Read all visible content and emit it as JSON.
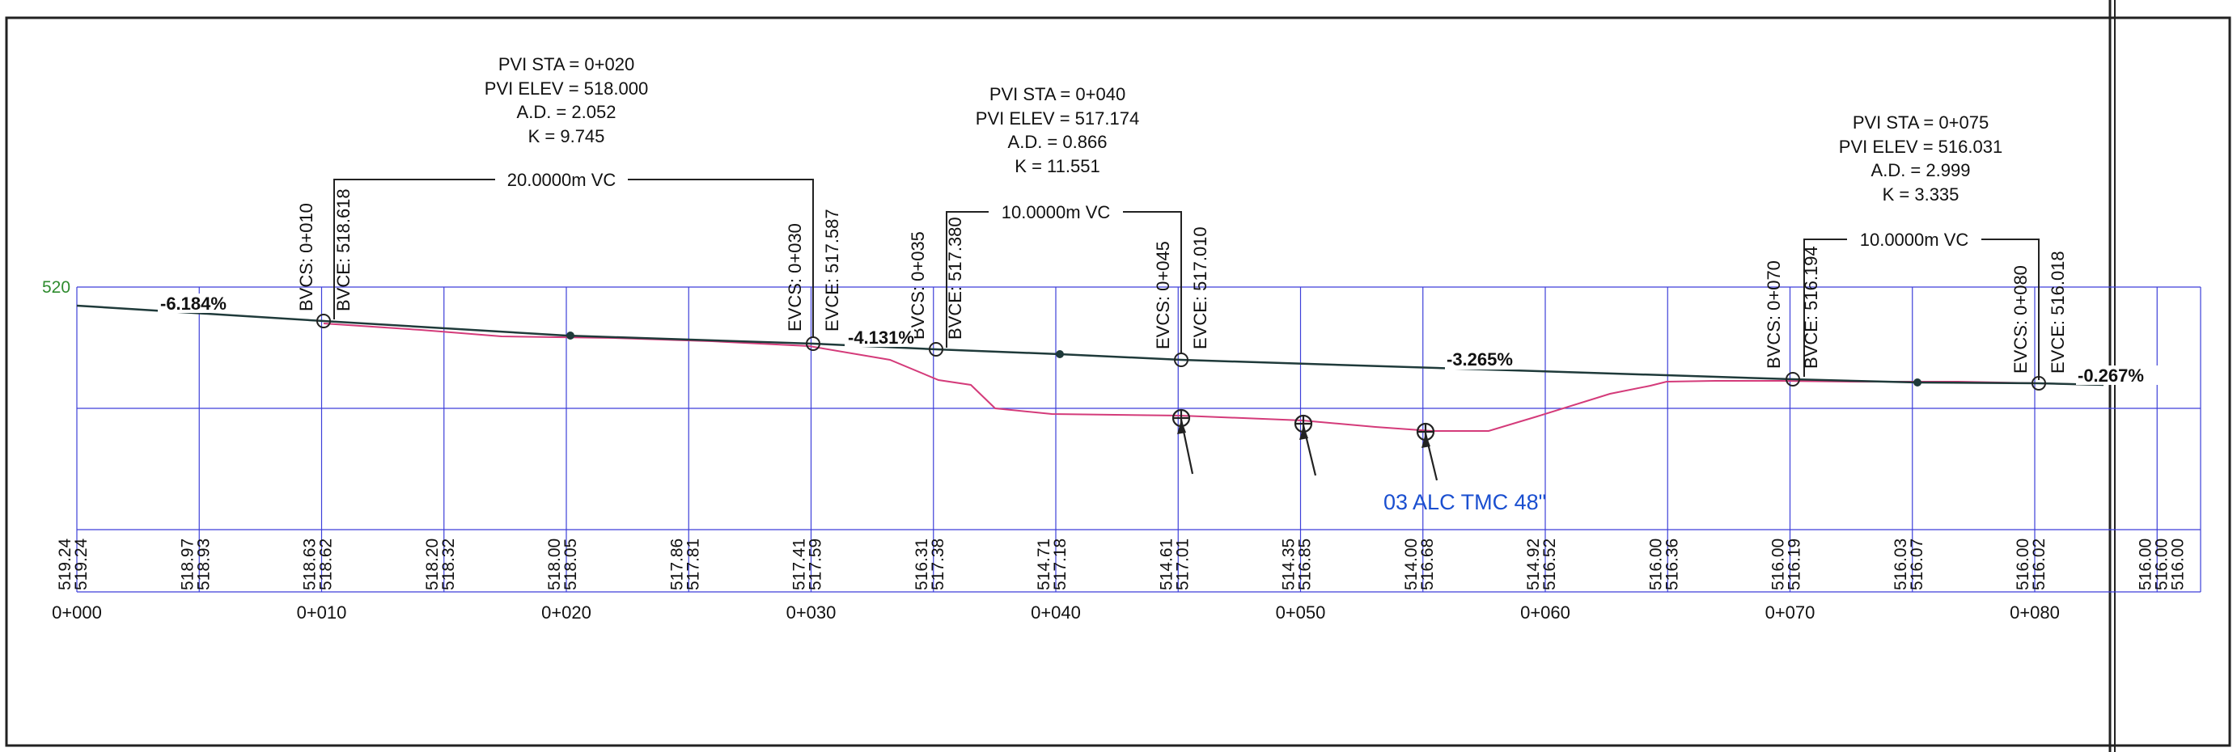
{
  "profile": {
    "elev_label": "520",
    "stations": [
      "0+000",
      "0+010",
      "0+020",
      "0+030",
      "0+040",
      "0+050",
      "0+060",
      "0+070",
      "0+080"
    ],
    "pvis": [
      {
        "sta": "PVI STA = 0+020",
        "elev": "PVI ELEV = 518.000",
        "ad": "A.D. = 2.052",
        "k": "K = 9.745",
        "vc": "20.0000m VC"
      },
      {
        "sta": "PVI STA = 0+040",
        "elev": "PVI ELEV = 517.174",
        "ad": "A.D. = 0.866",
        "k": "K = 11.551",
        "vc": "10.0000m VC"
      },
      {
        "sta": "PVI STA = 0+075",
        "elev": "PVI ELEV = 516.031",
        "ad": "A.D. = 2.999",
        "k": "K = 3.335",
        "vc": "10.0000m VC"
      }
    ],
    "curve_points": [
      {
        "sta_label": "BVCS: 0+010",
        "elev_label": "BVCE: 518.618"
      },
      {
        "sta_label": "EVCS: 0+030",
        "elev_label": "EVCE: 517.587"
      },
      {
        "sta_label": "BVCS: 0+035",
        "elev_label": "BVCE: 517.380"
      },
      {
        "sta_label": "EVCS: 0+045",
        "elev_label": "EVCE: 517.010"
      },
      {
        "sta_label": "BVCS: 0+070",
        "elev_label": "BVCE: 516.194"
      },
      {
        "sta_label": "EVCS: 0+080",
        "elev_label": "EVCE: 516.018"
      }
    ],
    "grades": [
      "-6.184%",
      "-4.131%",
      "-3.265%",
      "-0.267%"
    ],
    "annotation": "03 ALC TMC 48\"",
    "elevation_pairs": [
      [
        "519.24",
        "519.24"
      ],
      [
        "518.97",
        "518.93"
      ],
      [
        "518.63",
        "518.62"
      ],
      [
        "518.20",
        "518.32"
      ],
      [
        "518.00",
        "518.05"
      ],
      [
        "517.86",
        "517.81"
      ],
      [
        "517.41",
        "517.59"
      ],
      [
        "516.31",
        "517.38"
      ],
      [
        "514.71",
        "517.18"
      ],
      [
        "514.61",
        "517.01"
      ],
      [
        "514.35",
        "516.85"
      ],
      [
        "514.00",
        "516.68"
      ],
      [
        "514.92",
        "516.52"
      ],
      [
        "516.00",
        "516.36"
      ],
      [
        "516.00",
        "516.19"
      ],
      [
        "516.03",
        "516.07"
      ],
      [
        "516.00",
        "516.02"
      ],
      [
        "516.00",
        "516.00",
        "516.00"
      ]
    ],
    "colors": {
      "grid": "#3d3fd9",
      "ground": "#d43b7a",
      "design": "#1f3a3a",
      "annotation": "#1a4fd0",
      "elev_label": "#2e8b2e"
    }
  }
}
